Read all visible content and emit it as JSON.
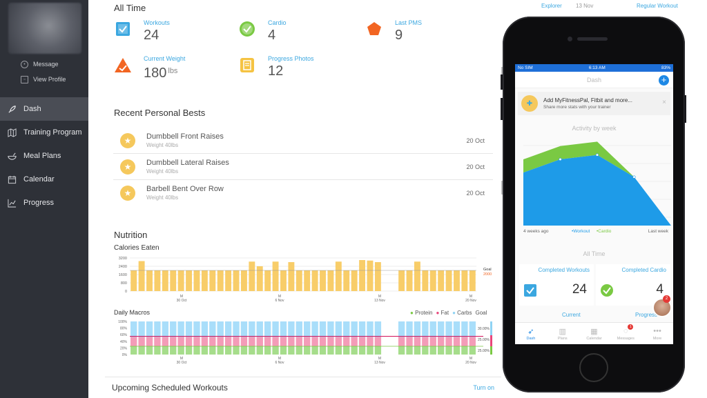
{
  "sidebar": {
    "links": [
      {
        "icon": "message-icon",
        "label": "Message"
      },
      {
        "icon": "profile-icon",
        "label": "View Profile"
      }
    ],
    "items": [
      {
        "icon": "rocket-icon",
        "label": "Dash",
        "active": true
      },
      {
        "icon": "map-icon",
        "label": "Training Program",
        "active": false
      },
      {
        "icon": "bowl-icon",
        "label": "Meal Plans",
        "active": false
      },
      {
        "icon": "calendar-icon",
        "label": "Calendar",
        "active": false
      },
      {
        "icon": "progress-chart-icon",
        "label": "Progress",
        "active": false
      }
    ]
  },
  "all_time": {
    "title": "All Time",
    "stats": [
      {
        "label": "Workouts",
        "value": "24",
        "unit": "",
        "icon": "checkbox-icon",
        "color": "#3ba7e0"
      },
      {
        "label": "Cardio",
        "value": "4",
        "unit": "",
        "icon": "check-circle-icon",
        "color": "#7ac943"
      },
      {
        "label": "Last PMS",
        "value": "9",
        "unit": "",
        "icon": "pentagon-icon",
        "color": "#f26522"
      },
      {
        "label": "Current Weight",
        "value": "180",
        "unit": "lbs",
        "icon": "weight-triangle-icon",
        "color": "#f26522"
      },
      {
        "label": "Progress Photos",
        "value": "12",
        "unit": "",
        "icon": "photos-icon",
        "color": "#f5c342"
      }
    ]
  },
  "personal_bests": {
    "title": "Recent Personal Bests",
    "items": [
      {
        "name": "Dumbbell Front Raises",
        "sub": "Weight 40lbs",
        "date": "20 Oct"
      },
      {
        "name": "Dumbbell Lateral Raises",
        "sub": "Weight 40lbs",
        "date": "20 Oct"
      },
      {
        "name": "Barbell Bent Over Row",
        "sub": "Weight 40lbs",
        "date": "20 Oct"
      }
    ]
  },
  "nutrition": {
    "title": "Nutrition",
    "calories_title": "Calories Eaten",
    "macros_title": "Daily Macros",
    "legend": [
      {
        "name": "Protein",
        "color": "#7ac943"
      },
      {
        "name": "Fat",
        "color": "#e8457a"
      },
      {
        "name": "Carbs",
        "color": "#8fd3f4"
      }
    ],
    "goal_label": "Goal"
  },
  "chart_data": [
    {
      "type": "bar",
      "title": "Calories Eaten",
      "yticks": [
        "3200",
        "2400",
        "1600",
        "800",
        "0"
      ],
      "ylim": [
        0,
        3200
      ],
      "goal": {
        "label": "Goal",
        "value": "2000"
      },
      "xticks": [
        {
          "day": "M",
          "date": "30 Oct"
        },
        {
          "day": "M",
          "date": "6 Nov"
        },
        {
          "day": "M",
          "date": "13 Nov"
        },
        {
          "day": "M",
          "date": "20 Nov"
        }
      ],
      "values": [
        2000,
        2900,
        2000,
        2000,
        2000,
        2000,
        2000,
        2000,
        2000,
        2000,
        2000,
        2000,
        2000,
        2000,
        2000,
        2850,
        2400,
        2000,
        2850,
        2000,
        2800,
        2000,
        2000,
        2000,
        2000,
        2000,
        2850,
        2000,
        2000,
        3000,
        2950,
        2800,
        0,
        0,
        2000,
        2000,
        2850,
        2000,
        2000,
        2000,
        2000,
        2000,
        2000,
        2000
      ]
    },
    {
      "type": "bar",
      "title": "Daily Macros",
      "stacked": true,
      "yticks": [
        "100%",
        "80%",
        "60%",
        "40%",
        "20%",
        "0%"
      ],
      "goal_ticks": [
        "30.00%",
        "25.00%",
        "25.00%"
      ],
      "series": [
        {
          "name": "Protein",
          "values": [
            25,
            25,
            25,
            25,
            25,
            25,
            25,
            25,
            25,
            25,
            25,
            25,
            25,
            25,
            25,
            25,
            25,
            25,
            25,
            25,
            25,
            25,
            25,
            25,
            25,
            25,
            25,
            25,
            25,
            25,
            25,
            25,
            0,
            0,
            25,
            25,
            25,
            25,
            25,
            25,
            25,
            25,
            25,
            25
          ]
        },
        {
          "name": "Fat",
          "values": [
            28,
            28,
            28,
            28,
            28,
            28,
            28,
            28,
            28,
            28,
            28,
            28,
            28,
            28,
            28,
            28,
            28,
            28,
            28,
            28,
            28,
            28,
            28,
            28,
            28,
            28,
            28,
            28,
            28,
            28,
            28,
            28,
            0,
            0,
            28,
            28,
            28,
            28,
            28,
            28,
            28,
            28,
            28,
            28
          ]
        },
        {
          "name": "Carbs",
          "values": [
            47,
            47,
            47,
            47,
            47,
            47,
            47,
            47,
            47,
            47,
            47,
            47,
            47,
            47,
            47,
            47,
            47,
            47,
            47,
            47,
            47,
            47,
            47,
            47,
            47,
            47,
            47,
            47,
            47,
            47,
            47,
            47,
            0,
            0,
            47,
            47,
            47,
            47,
            47,
            47,
            47,
            47,
            47,
            47
          ]
        }
      ],
      "xticks": [
        {
          "day": "M",
          "date": "30 Oct"
        },
        {
          "day": "M",
          "date": "6 Nov"
        },
        {
          "day": "M",
          "date": "13 Nov"
        },
        {
          "day": "M",
          "date": "20 Nov"
        }
      ]
    },
    {
      "type": "area",
      "title": "Activity by week",
      "x": [
        "4 weeks ago",
        "",
        "",
        "",
        "Last week"
      ],
      "series": [
        {
          "name": "Workout",
          "values": [
            6,
            7.5,
            8,
            5.5,
            0
          ],
          "color": "#1e9be8"
        },
        {
          "name": "Cardio",
          "values": [
            1.5,
            1.5,
            1.5,
            0,
            0
          ],
          "color": "#7ac943"
        }
      ],
      "ylim": [
        0,
        10
      ]
    }
  ],
  "upcoming": {
    "title": "Upcoming Scheduled Workouts",
    "link": "Turn on"
  },
  "background_top": {
    "left": "Explorer",
    "mid": "13 Nov",
    "right": "Regular Workout"
  },
  "phone": {
    "status": {
      "carrier": "No SIM",
      "time": "6:13 AM",
      "battery": "83%"
    },
    "header_title": "Dash",
    "plus_label": "+",
    "banner": {
      "title": "Add MyFitnessPal, Fitbit and more...",
      "subtitle": "Share more stats with your trainer",
      "close": "×"
    },
    "activity_title": "Activity by week",
    "legend_workout": "Workout",
    "legend_cardio": "Cardio",
    "x_start": "4 weeks ago",
    "x_end": "Last week",
    "all_time_title": "All Time",
    "cards": [
      {
        "label": "Completed Workouts",
        "value": "24"
      },
      {
        "label": "Completed Cardio",
        "value": "4"
      }
    ],
    "cards_row2": [
      "Current",
      "Progress"
    ],
    "tabs": [
      {
        "label": "Dash",
        "icon": "rocket-icon"
      },
      {
        "label": "Plans",
        "icon": "map-icon"
      },
      {
        "label": "Calendar",
        "icon": "calendar-icon"
      },
      {
        "label": "Messages",
        "icon": "chat-icon",
        "badge": "1"
      },
      {
        "label": "More",
        "icon": "more-icon"
      }
    ],
    "chat_badge": "2"
  }
}
